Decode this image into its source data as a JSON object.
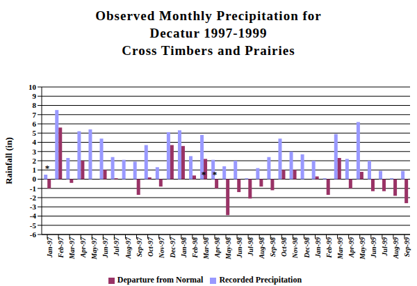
{
  "chart_data": {
    "type": "bar",
    "title": "Observed Monthly Precipitation for\nDecatur 1997-1999\nCross Timbers and Prairies",
    "y_label": "Rainfall (in)",
    "categories": [
      "Jan-97",
      "Feb-97",
      "Mar-97",
      "Apr-97",
      "May-97",
      "Jun-97",
      "Jul-97",
      "Aug-97",
      "Sep-97",
      "Oct-97",
      "Nov-97",
      "Dec-97",
      "Jan-98",
      "Feb-98",
      "Mar-98",
      "Apr-98",
      "May-98",
      "Jun-98",
      "Jul-98",
      "Aug-98",
      "Sep-98",
      "Oct-98",
      "Nov-98",
      "Dec-98",
      "Jan-99",
      "Feb-99",
      "Mar-99",
      "Apr-99",
      "May-99",
      "Jun-99",
      "Jul-99",
      "Aug-99",
      "Sep-99"
    ],
    "series": [
      {
        "name": "Recorded Precipitation",
        "color": "#9999ff",
        "values": [
          0.5,
          7.5,
          2.3,
          5.2,
          5.4,
          4.4,
          2.4,
          2.1,
          1.9,
          3.7,
          1.3,
          5.1,
          5.3,
          2.5,
          4.8,
          2.1,
          1.4,
          2.0,
          0.1,
          1.2,
          2.4,
          4.4,
          3.0,
          2.7,
          2.0,
          0.1,
          4.9,
          2.2,
          6.2,
          2.0,
          0.9,
          0.1,
          0.9
        ]
      },
      {
        "name": "Departure from Normal",
        "color": "#993366",
        "values": [
          -1.0,
          5.6,
          -0.4,
          2.0,
          0.0,
          1.0,
          0.1,
          0.0,
          -1.7,
          0.2,
          -0.8,
          3.7,
          3.6,
          0.4,
          2.2,
          -1.0,
          -3.9,
          -1.4,
          -2.1,
          -0.8,
          -1.2,
          1.0,
          1.0,
          0.0,
          0.3,
          -1.7,
          2.3,
          -1.0,
          0.8,
          -1.3,
          -1.3,
          -1.8,
          -2.6
        ]
      }
    ],
    "ylim": [
      -6,
      10
    ],
    "yticks": [
      -6,
      -5,
      -4,
      -3,
      -2,
      -1,
      0,
      1,
      2,
      3,
      4,
      5,
      6,
      7,
      8,
      9,
      10
    ],
    "grid": true,
    "legend": "bottom",
    "annotations": [
      {
        "text": "*",
        "category": "Jan-97",
        "y": 1.2
      },
      {
        "text": "*",
        "category": "Mar-98",
        "y": 0.5
      },
      {
        "text": "*",
        "category": "Apr-98",
        "y": 0.5
      }
    ]
  }
}
